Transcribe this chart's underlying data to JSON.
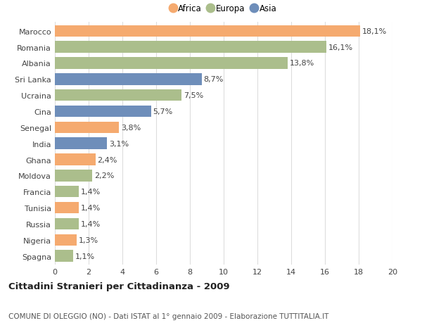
{
  "countries": [
    "Marocco",
    "Romania",
    "Albania",
    "Sri Lanka",
    "Ucraina",
    "Cina",
    "Senegal",
    "India",
    "Ghana",
    "Moldova",
    "Francia",
    "Tunisia",
    "Russia",
    "Nigeria",
    "Spagna"
  ],
  "values": [
    18.1,
    16.1,
    13.8,
    8.7,
    7.5,
    5.7,
    3.8,
    3.1,
    2.4,
    2.2,
    1.4,
    1.4,
    1.4,
    1.3,
    1.1
  ],
  "continents": [
    "Africa",
    "Europa",
    "Europa",
    "Asia",
    "Europa",
    "Asia",
    "Africa",
    "Asia",
    "Africa",
    "Europa",
    "Europa",
    "Africa",
    "Europa",
    "Africa",
    "Europa"
  ],
  "colors": {
    "Africa": "#F5AA6F",
    "Europa": "#ABBE8C",
    "Asia": "#6E8EBA"
  },
  "legend_labels": [
    "Africa",
    "Europa",
    "Asia"
  ],
  "legend_colors": [
    "#F5AA6F",
    "#ABBE8C",
    "#6E8EBA"
  ],
  "title": "Cittadini Stranieri per Cittadinanza - 2009",
  "subtitle": "COMUNE DI OLEGGIO (NO) - Dati ISTAT al 1° gennaio 2009 - Elaborazione TUTTITALIA.IT",
  "xlim": [
    0,
    20
  ],
  "xticks": [
    0,
    2,
    4,
    6,
    8,
    10,
    12,
    14,
    16,
    18,
    20
  ],
  "bar_height": 0.72,
  "bg_color": "#FFFFFF",
  "grid_color": "#DDDDDD",
  "label_fontsize": 8,
  "tick_fontsize": 8,
  "title_fontsize": 9.5,
  "subtitle_fontsize": 7.5
}
